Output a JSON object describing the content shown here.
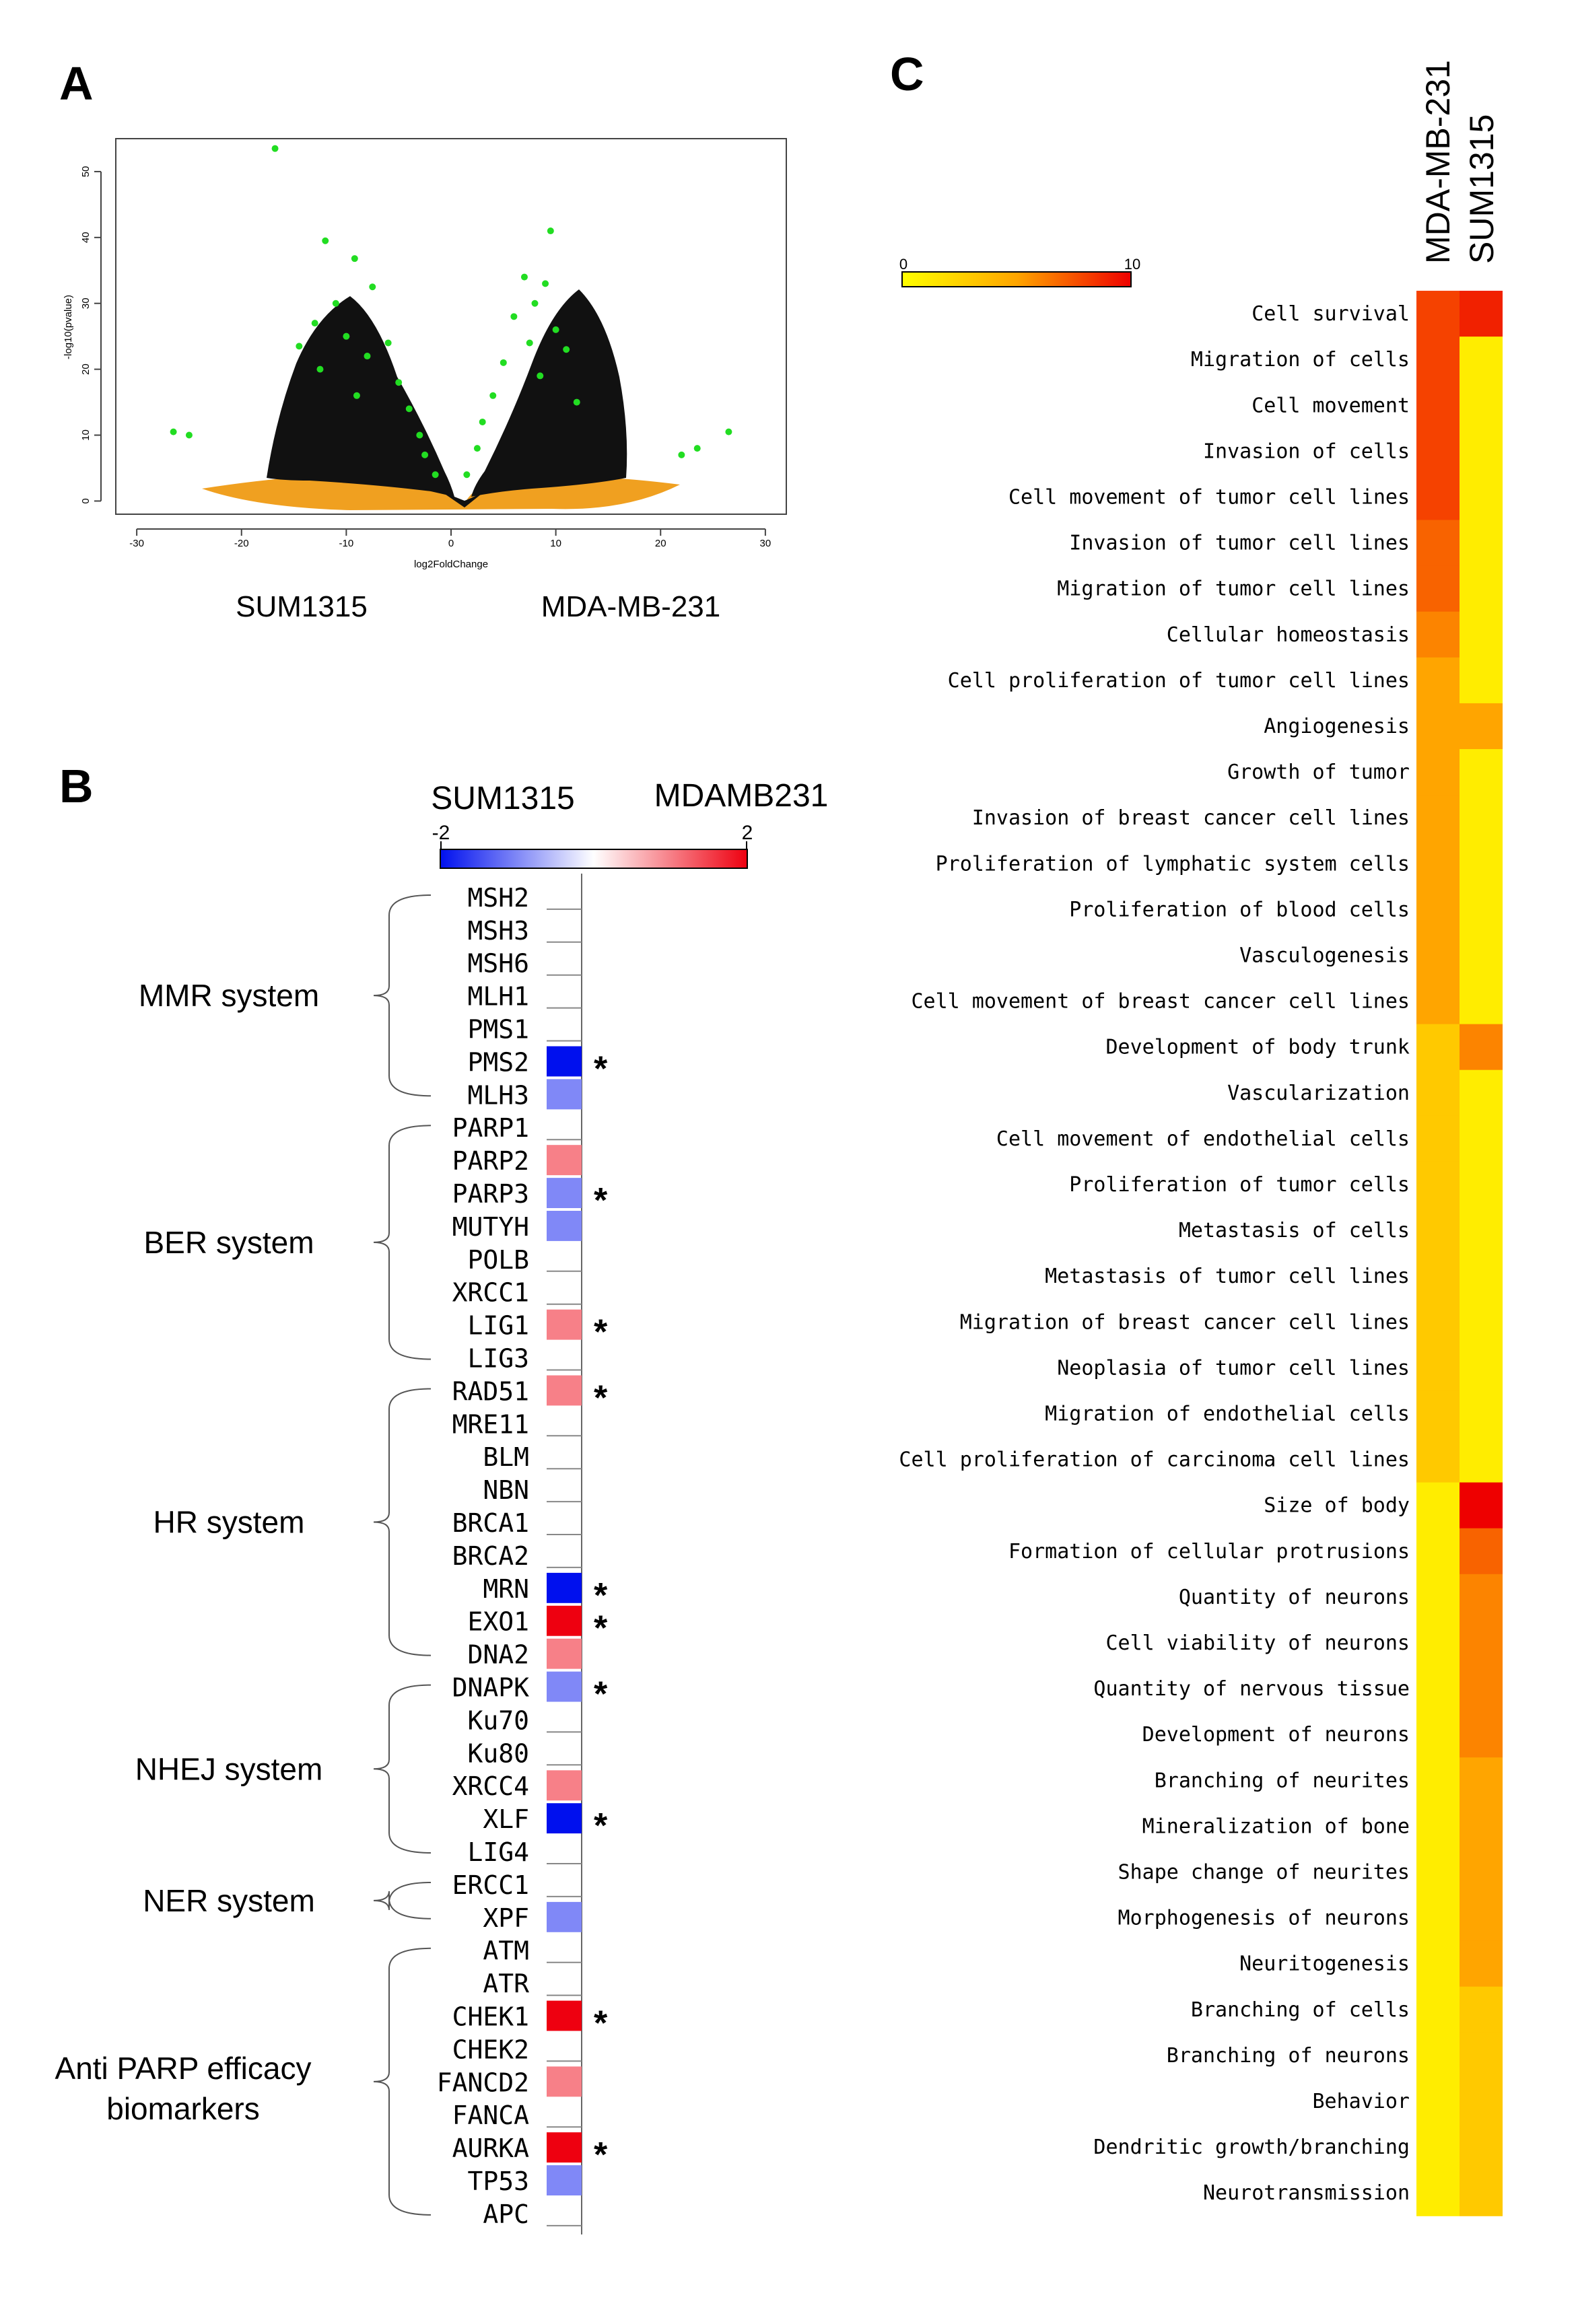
{
  "panels": {
    "a": "A",
    "b": "B",
    "c": "C"
  },
  "chart_data": [
    {
      "type": "scatter",
      "panel": "A",
      "xlabel": "log2FoldChange",
      "ylabel": "-log10(pvalue)",
      "xticks": [
        "-30",
        "-20",
        "-10",
        "0",
        "10",
        "20",
        "30"
      ],
      "yticks": [
        "0",
        "10",
        "20",
        "30",
        "40",
        "50"
      ],
      "xlim": [
        -32,
        32
      ],
      "ylim": [
        -2,
        55
      ],
      "below_labels": [
        "SUM1315",
        "MDA-MB-231"
      ],
      "highlight_points": [
        {
          "x": -16.8,
          "y": 53.5
        },
        {
          "x": -12,
          "y": 39.5
        },
        {
          "x": -9.2,
          "y": 36.8
        },
        {
          "x": -7.5,
          "y": 32.5
        },
        {
          "x": -11,
          "y": 30
        },
        {
          "x": -13,
          "y": 27
        },
        {
          "x": -10,
          "y": 25
        },
        {
          "x": -14.5,
          "y": 23.5
        },
        {
          "x": -8,
          "y": 22
        },
        {
          "x": -6,
          "y": 24
        },
        {
          "x": -12.5,
          "y": 20
        },
        {
          "x": -5,
          "y": 18
        },
        {
          "x": -9,
          "y": 16
        },
        {
          "x": -4,
          "y": 14
        },
        {
          "x": -3,
          "y": 10
        },
        {
          "x": -2.5,
          "y": 7
        },
        {
          "x": -1.5,
          "y": 4
        },
        {
          "x": -26.5,
          "y": 10.5
        },
        {
          "x": -25,
          "y": 10
        },
        {
          "x": 9.5,
          "y": 41
        },
        {
          "x": 7,
          "y": 34
        },
        {
          "x": 9,
          "y": 33
        },
        {
          "x": 8,
          "y": 30
        },
        {
          "x": 6,
          "y": 28
        },
        {
          "x": 10,
          "y": 26
        },
        {
          "x": 7.5,
          "y": 24
        },
        {
          "x": 11,
          "y": 23
        },
        {
          "x": 5,
          "y": 21
        },
        {
          "x": 8.5,
          "y": 19
        },
        {
          "x": 4,
          "y": 16
        },
        {
          "x": 12,
          "y": 15
        },
        {
          "x": 3,
          "y": 12
        },
        {
          "x": 2.5,
          "y": 8
        },
        {
          "x": 1.5,
          "y": 4
        },
        {
          "x": 22,
          "y": 7
        },
        {
          "x": 23.5,
          "y": 8
        },
        {
          "x": 26.5,
          "y": 10.5
        }
      ]
    },
    {
      "type": "heatmap",
      "panel": "B",
      "legend": {
        "left_label": "SUM1315",
        "right_label": "MDAMB231",
        "min": "-2",
        "max": "2"
      },
      "groups": [
        {
          "label": "MMR system",
          "start": 0,
          "end": 6
        },
        {
          "label": "BER system",
          "start": 7,
          "end": 14
        },
        {
          "label": "HR system",
          "start": 15,
          "end": 23
        },
        {
          "label": "NHEJ system",
          "start": 24,
          "end": 29
        },
        {
          "label": "NER system",
          "start": 30,
          "end": 31
        },
        {
          "label_line1": "Anti PARP efficacy",
          "label_line2": "biomarkers",
          "start": 32,
          "end": 40
        }
      ],
      "genes": [
        {
          "name": "MSH2",
          "value": 0,
          "star": false
        },
        {
          "name": "MSH3",
          "value": 0,
          "star": false
        },
        {
          "name": "MSH6",
          "value": 0,
          "star": false
        },
        {
          "name": "MLH1",
          "value": 0,
          "star": false
        },
        {
          "name": "PMS1",
          "value": 0,
          "star": false
        },
        {
          "name": "PMS2",
          "value": -2,
          "star": true
        },
        {
          "name": "MLH3",
          "value": -1,
          "star": false
        },
        {
          "name": "PARP1",
          "value": 0,
          "star": false
        },
        {
          "name": "PARP2",
          "value": 1,
          "star": false
        },
        {
          "name": "PARP3",
          "value": -1,
          "star": true
        },
        {
          "name": "MUTYH",
          "value": -1,
          "star": false
        },
        {
          "name": "POLB",
          "value": 0,
          "star": false
        },
        {
          "name": "XRCC1",
          "value": 0,
          "star": false
        },
        {
          "name": "LIG1",
          "value": 1,
          "star": true
        },
        {
          "name": "LIG3",
          "value": 0,
          "star": false
        },
        {
          "name": "RAD51",
          "value": 1,
          "star": true
        },
        {
          "name": "MRE11",
          "value": 0,
          "star": false
        },
        {
          "name": "BLM",
          "value": 0,
          "star": false
        },
        {
          "name": "NBN",
          "value": 0,
          "star": false
        },
        {
          "name": "BRCA1",
          "value": 0,
          "star": false
        },
        {
          "name": "BRCA2",
          "value": 0,
          "star": false
        },
        {
          "name": "MRN",
          "value": -2,
          "star": true
        },
        {
          "name": "EXO1",
          "value": 2,
          "star": true
        },
        {
          "name": "DNA2",
          "value": 1,
          "star": false
        },
        {
          "name": "DNAPK",
          "value": -1,
          "star": true
        },
        {
          "name": "Ku70",
          "value": 0,
          "star": false
        },
        {
          "name": "Ku80",
          "value": 0,
          "star": false
        },
        {
          "name": "XRCC4",
          "value": 1,
          "star": false
        },
        {
          "name": "XLF",
          "value": -2,
          "star": true
        },
        {
          "name": "LIG4",
          "value": 0,
          "star": false
        },
        {
          "name": "ERCC1",
          "value": 0,
          "star": false
        },
        {
          "name": "XPF",
          "value": -1,
          "star": false
        },
        {
          "name": "ATM",
          "value": 0,
          "star": false
        },
        {
          "name": "ATR",
          "value": 0,
          "star": false
        },
        {
          "name": "CHEK1",
          "value": 2,
          "star": true
        },
        {
          "name": "CHEK2",
          "value": 0,
          "star": false
        },
        {
          "name": "FANCD2",
          "value": 1,
          "star": false
        },
        {
          "name": "FANCA",
          "value": 0,
          "star": false
        },
        {
          "name": "AURKA",
          "value": 2,
          "star": true
        },
        {
          "name": "TP53",
          "value": -1,
          "star": false
        },
        {
          "name": "APC",
          "value": 0,
          "star": false
        }
      ],
      "star_symbol": "*"
    },
    {
      "type": "heatmap",
      "panel": "C",
      "columns": [
        "MDA-MB-231",
        "SUM1315"
      ],
      "legend": {
        "min": "0",
        "max": "10"
      },
      "rows": [
        {
          "label": "Cell survival",
          "values": [
            8,
            9
          ]
        },
        {
          "label": "Migration of cells",
          "values": [
            8,
            1
          ]
        },
        {
          "label": "Cell movement",
          "values": [
            8,
            1
          ]
        },
        {
          "label": "Invasion of cells",
          "values": [
            8,
            1
          ]
        },
        {
          "label": "Cell movement of tumor cell lines",
          "values": [
            8,
            1
          ]
        },
        {
          "label": "Invasion of tumor cell lines",
          "values": [
            7,
            1
          ]
        },
        {
          "label": "Migration of tumor cell lines",
          "values": [
            7,
            1
          ]
        },
        {
          "label": "Cellular homeostasis",
          "values": [
            6,
            1
          ]
        },
        {
          "label": "Cell proliferation of tumor cell lines",
          "values": [
            5,
            1
          ]
        },
        {
          "label": "Angiogenesis",
          "values": [
            5,
            5
          ]
        },
        {
          "label": "Growth of tumor",
          "values": [
            5,
            1
          ]
        },
        {
          "label": "Invasion of breast cancer cell lines",
          "values": [
            5,
            1
          ]
        },
        {
          "label": "Proliferation of lymphatic system cells",
          "values": [
            5,
            1
          ]
        },
        {
          "label": "Proliferation of blood cells",
          "values": [
            5,
            1
          ]
        },
        {
          "label": "Vasculogenesis",
          "values": [
            5,
            1
          ]
        },
        {
          "label": "Cell movement of breast cancer cell lines",
          "values": [
            5,
            1
          ]
        },
        {
          "label": "Development of body trunk",
          "values": [
            3,
            6
          ]
        },
        {
          "label": "Vascularization",
          "values": [
            3,
            1
          ]
        },
        {
          "label": "Cell movement of endothelial cells",
          "values": [
            3,
            1
          ]
        },
        {
          "label": "Proliferation of tumor cells",
          "values": [
            3,
            1
          ]
        },
        {
          "label": "Metastasis of cells",
          "values": [
            3,
            1
          ]
        },
        {
          "label": "Metastasis of tumor cell lines",
          "values": [
            3,
            1
          ]
        },
        {
          "label": "Migration of breast cancer cell lines",
          "values": [
            3,
            1
          ]
        },
        {
          "label": "Neoplasia of tumor cell lines",
          "values": [
            3,
            1
          ]
        },
        {
          "label": "Migration of endothelial cells",
          "values": [
            3,
            1
          ]
        },
        {
          "label": "Cell proliferation of carcinoma cell lines",
          "values": [
            3,
            1
          ]
        },
        {
          "label": "Size of body",
          "values": [
            1,
            10
          ]
        },
        {
          "label": "Formation of cellular protrusions",
          "values": [
            1,
            7
          ]
        },
        {
          "label": "Quantity of neurons",
          "values": [
            1,
            6
          ]
        },
        {
          "label": "Cell viability of neurons",
          "values": [
            1,
            6
          ]
        },
        {
          "label": "Quantity of nervous tissue",
          "values": [
            1,
            6
          ]
        },
        {
          "label": "Development of neurons",
          "values": [
            1,
            6
          ]
        },
        {
          "label": "Branching of neurites",
          "values": [
            1,
            5
          ]
        },
        {
          "label": "Mineralization of bone",
          "values": [
            1,
            5
          ]
        },
        {
          "label": "Shape change of neurites",
          "values": [
            1,
            5
          ]
        },
        {
          "label": "Morphogenesis of neurons",
          "values": [
            1,
            5
          ]
        },
        {
          "label": "Neuritogenesis",
          "values": [
            1,
            5
          ]
        },
        {
          "label": "Branching of cells",
          "values": [
            1,
            3
          ]
        },
        {
          "label": "Branching of neurons",
          "values": [
            1,
            3
          ]
        },
        {
          "label": "Behavior",
          "values": [
            1,
            3
          ]
        },
        {
          "label": "Dendritic growth/branching",
          "values": [
            1,
            3
          ]
        },
        {
          "label": "Neurotransmission",
          "values": [
            1,
            3
          ]
        }
      ]
    }
  ]
}
